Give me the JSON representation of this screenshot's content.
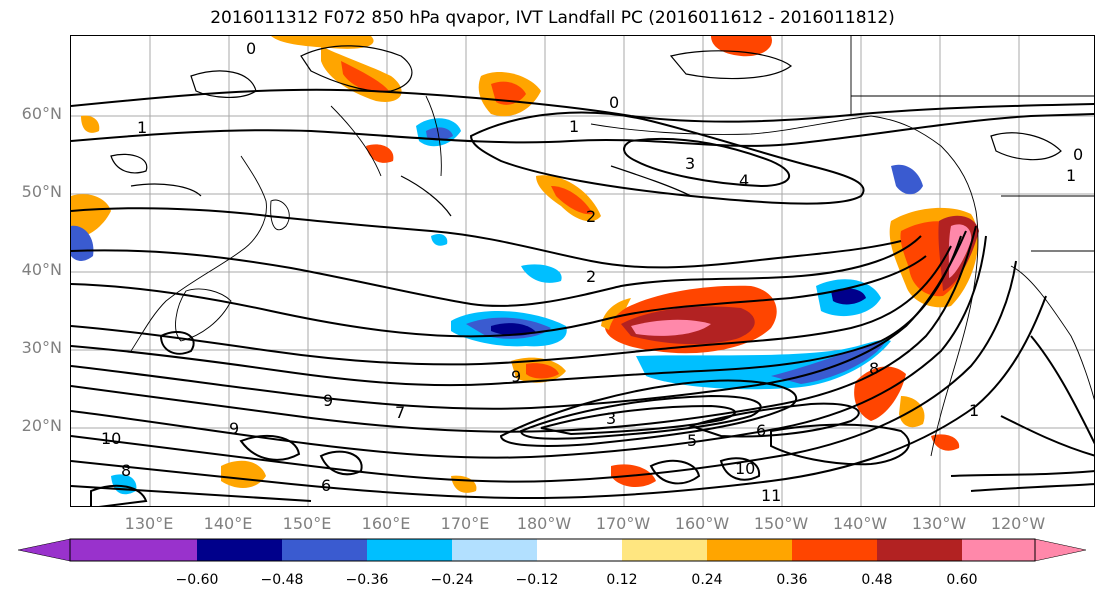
{
  "title": "2016011312 F072 850 hPa qvapor, IVT Landfall PC (2016011612 - 2016011812)",
  "lat_labels": [
    "60°N",
    "50°N",
    "40°N",
    "30°N",
    "20°N"
  ],
  "lon_labels": [
    "130°E",
    "140°E",
    "150°E",
    "160°E",
    "170°E",
    "180°W",
    "170°W",
    "160°W",
    "150°W",
    "140°W",
    "130°W",
    "120°W"
  ],
  "colorbar": {
    "ticks": [
      "−0.60",
      "−0.48",
      "−0.36",
      "−0.24",
      "−0.12",
      "0.12",
      "0.24",
      "0.36",
      "0.48",
      "0.60"
    ],
    "colors": [
      "#9932cc",
      "#00008b",
      "#3a5bd0",
      "#00bfff",
      "#b2e0ff",
      "#ffffff",
      "#ffe680",
      "#ffa500",
      "#ff4500",
      "#b22222",
      "#ff88aa"
    ]
  },
  "contour_labels": [
    "0",
    "0",
    "0",
    "1",
    "1",
    "1",
    "2",
    "2",
    "3",
    "3",
    "4",
    "5",
    "6",
    "6",
    "7",
    "8",
    "8",
    "9",
    "9",
    "9",
    "10",
    "10",
    "11",
    "1"
  ]
}
